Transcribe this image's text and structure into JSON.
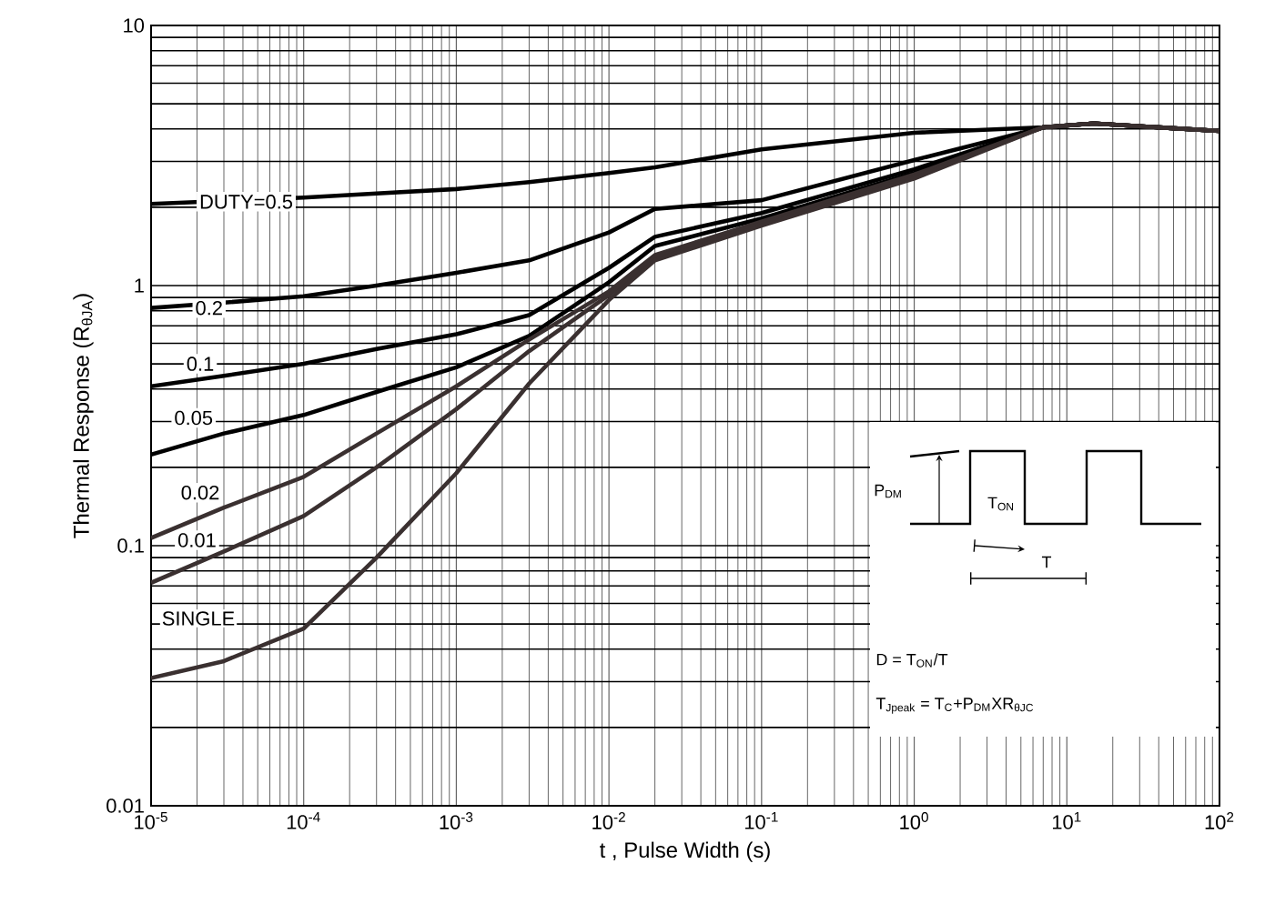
{
  "chart_data": {
    "type": "line",
    "xlabel": "t , Pulse Width (s)",
    "ylabel": "Thermal Response (R$_{θJA}$)",
    "log": "xy",
    "grid": true,
    "marker": "none",
    "line_style": "solid",
    "xlim": [
      1e-05,
      100
    ],
    "ylim": [
      0.01,
      10
    ],
    "xticks": [
      {
        "value": 1e-05,
        "label": "10$^{-5}$"
      },
      {
        "value": 0.0001,
        "label": "10$^{-4}$"
      },
      {
        "value": 0.001,
        "label": "10$^{-3}$"
      },
      {
        "value": 0.01,
        "label": "10$^{-2}$"
      },
      {
        "value": 0.1,
        "label": "10$^{-1}$"
      },
      {
        "value": 1,
        "label": "10$^{0}$"
      },
      {
        "value": 10,
        "label": "10$^{1}$"
      },
      {
        "value": 100,
        "label": "10$^{2}$"
      }
    ],
    "yticks": [
      0.01,
      0.1,
      1,
      10
    ],
    "x": [
      1e-05,
      3e-05,
      0.0001,
      0.0003,
      0.001,
      0.003,
      0.01,
      0.02,
      0.1,
      1,
      7,
      15,
      100
    ],
    "series": [
      {
        "color": "#000000",
        "values": [
          2.06,
          null,
          2.18,
          2.26,
          2.35,
          2.5,
          2.71,
          2.85,
          3.34,
          3.87,
          4.06,
          4.2,
          3.93
        ]
      },
      {
        "color": "#000000",
        "values": [
          0.82,
          0.86,
          0.91,
          1.0,
          1.12,
          1.25,
          1.6,
          1.97,
          2.13,
          3.04,
          4.06,
          4.2,
          3.93
        ]
      },
      {
        "color": "#000000",
        "values": [
          0.41,
          0.45,
          0.5,
          0.57,
          0.65,
          0.77,
          1.17,
          1.54,
          1.9,
          2.8,
          4.06,
          4.2,
          3.93
        ]
      },
      {
        "color": "#000000",
        "values": [
          0.224,
          0.27,
          0.318,
          0.39,
          0.485,
          0.64,
          1.03,
          1.42,
          1.81,
          2.71,
          4.06,
          4.2,
          3.93
        ]
      },
      {
        "color": "#3a3030",
        "values": [
          0.107,
          0.14,
          0.184,
          0.27,
          0.41,
          0.62,
          0.95,
          1.31,
          1.76,
          2.67,
          4.06,
          4.2,
          3.93
        ]
      },
      {
        "color": "#3a3030",
        "values": [
          0.072,
          0.095,
          0.13,
          0.2,
          0.335,
          0.56,
          0.92,
          1.28,
          1.73,
          2.63,
          4.06,
          4.2,
          3.93
        ]
      },
      {
        "color": "#3a3030",
        "values": [
          0.031,
          0.036,
          0.048,
          0.09,
          0.19,
          0.42,
          0.88,
          1.25,
          1.7,
          2.58,
          4.06,
          4.2,
          3.93
        ]
      }
    ],
    "annotations": [
      {
        "text": "DUTY=0.5",
        "x": 4.2e-05,
        "y": 2.1
      },
      {
        "text": "0.2",
        "x": 2.4e-05,
        "y": 0.82
      },
      {
        "text": "0.1",
        "x": 2.1e-05,
        "y": 0.5
      },
      {
        "text": "0.05",
        "x": 1.9e-05,
        "y": 0.31
      },
      {
        "text": "0.02",
        "x": 2.1e-05,
        "y": 0.16
      },
      {
        "text": "0.01",
        "x": 2e-05,
        "y": 0.105
      },
      "SINGLE",
      "P$_{DM}$",
      "T$_{ON}$",
      "T",
      "D = T$_{ON}$/T",
      "T$_{Jpeak}$ = T$_{C}$+P$_{DM}$XR$_{θJC}$"
    ]
  }
}
